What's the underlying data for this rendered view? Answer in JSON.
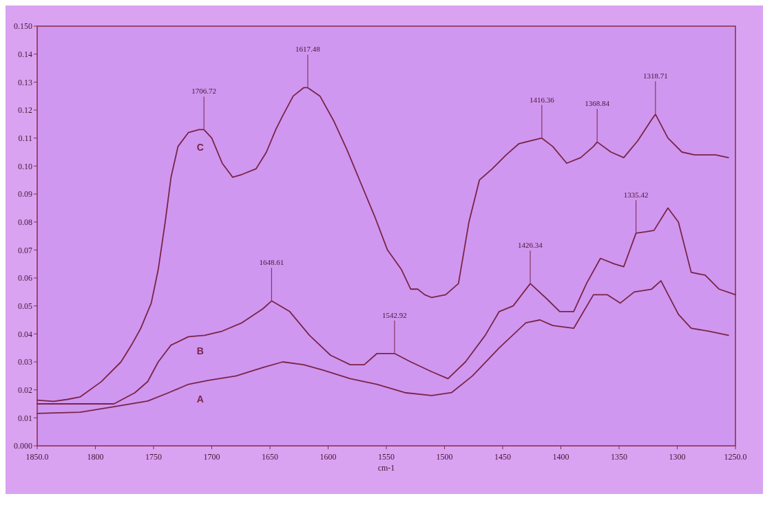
{
  "chart_data": {
    "type": "line",
    "xlabel": "cm-1",
    "xlim": [
      1850,
      1250
    ],
    "xticks": [
      {
        "value": 1850,
        "label": "1850.0"
      },
      1800,
      1750,
      1700,
      1650,
      1600,
      1550,
      1500,
      1450,
      1400,
      1350,
      1300,
      {
        "value": 1250,
        "label": "1250.0"
      }
    ],
    "ylim": [
      0,
      0.15
    ],
    "yticks": [
      {
        "value": 0,
        "label": "0.000"
      },
      0.01,
      0.02,
      0.03,
      0.04,
      0.05,
      0.06,
      0.07,
      0.08,
      0.09,
      {
        "value": 0.1,
        "label": "0.10"
      },
      0.11,
      0.12,
      0.13,
      0.14,
      {
        "value": 0.15,
        "label": "0.150"
      }
    ],
    "grid": false,
    "marker": "none",
    "line_style": "solid",
    "series": [
      {
        "name": "A",
        "color": "#7a2348",
        "x": [
          1850,
          1813,
          1784,
          1755,
          1737,
          1720,
          1703,
          1679,
          1656,
          1639,
          1621,
          1604,
          1581,
          1558,
          1534,
          1511,
          1494,
          1476,
          1453,
          1430,
          1418,
          1407,
          1389,
          1372,
          1360,
          1349,
          1337,
          1322,
          1314,
          1299,
          1288,
          1273,
          1256
        ],
        "values": [
          0.0116,
          0.012,
          0.014,
          0.016,
          0.019,
          0.022,
          0.0234,
          0.025,
          0.028,
          0.03,
          0.029,
          0.027,
          0.024,
          0.022,
          0.019,
          0.018,
          0.019,
          0.025,
          0.035,
          0.044,
          0.045,
          0.043,
          0.042,
          0.054,
          0.054,
          0.051,
          0.055,
          0.056,
          0.059,
          0.047,
          0.042,
          0.041,
          0.0395
        ]
      },
      {
        "name": "B",
        "color": "#7a2348",
        "x": [
          1850,
          1813,
          1784,
          1766,
          1755,
          1746,
          1735,
          1720,
          1706,
          1691,
          1674,
          1656,
          1648.6,
          1633,
          1616,
          1598,
          1581,
          1569,
          1558,
          1543,
          1529,
          1511,
          1497,
          1482,
          1465,
          1453,
          1441,
          1426.3,
          1412,
          1401,
          1389,
          1378,
          1366,
          1354,
          1346,
          1335.42,
          1327,
          1320,
          1308,
          1299,
          1288,
          1276,
          1264,
          1250
        ],
        "values": [
          0.015,
          0.015,
          0.015,
          0.019,
          0.023,
          0.03,
          0.036,
          0.039,
          0.0395,
          0.041,
          0.044,
          0.049,
          0.0518,
          0.048,
          0.0395,
          0.0324,
          0.029,
          0.029,
          0.033,
          0.033,
          0.03,
          0.0265,
          0.024,
          0.03,
          0.0395,
          0.048,
          0.05,
          0.058,
          0.0525,
          0.048,
          0.048,
          0.058,
          0.067,
          0.065,
          0.064,
          0.076,
          0.0765,
          0.077,
          0.085,
          0.08,
          0.062,
          0.061,
          0.056,
          0.054
        ]
      },
      {
        "name": "C",
        "color": "#7a2348",
        "x": [
          1850,
          1836,
          1824,
          1813,
          1795,
          1778,
          1769,
          1761,
          1752,
          1746,
          1740,
          1735,
          1729,
          1720,
          1711,
          1706.7,
          1700,
          1691,
          1682,
          1674,
          1662,
          1653,
          1645,
          1639,
          1630,
          1621,
          1617.5,
          1607,
          1595,
          1584,
          1572,
          1560,
          1549,
          1537,
          1529,
          1523,
          1517,
          1511,
          1499,
          1488,
          1479,
          1470,
          1459,
          1447,
          1436,
          1416.4,
          1407,
          1395,
          1383,
          1372,
          1368.8,
          1357,
          1346,
          1334,
          1322,
          1318.7,
          1308,
          1296,
          1285,
          1267,
          1256
        ],
        "values": [
          0.0163,
          0.0159,
          0.0166,
          0.0175,
          0.0229,
          0.03,
          0.036,
          0.042,
          0.051,
          0.063,
          0.08,
          0.096,
          0.107,
          0.112,
          0.113,
          0.113,
          0.11,
          0.101,
          0.096,
          0.097,
          0.099,
          0.105,
          0.113,
          0.118,
          0.125,
          0.128,
          0.128,
          0.125,
          0.116,
          0.106,
          0.094,
          0.082,
          0.07,
          0.063,
          0.056,
          0.056,
          0.054,
          0.053,
          0.054,
          0.058,
          0.08,
          0.095,
          0.099,
          0.104,
          0.108,
          0.11,
          0.107,
          0.101,
          0.103,
          0.107,
          0.1086,
          0.105,
          0.103,
          0.109,
          0.1166,
          0.1185,
          0.11,
          0.105,
          0.104,
          0.104,
          0.103
        ]
      }
    ],
    "annotations": [
      {
        "text": "1706.72",
        "x": 1706.72,
        "y": 0.113
      },
      {
        "text": "1617.48",
        "x": 1617.48,
        "y": 0.128
      },
      {
        "text": "1648.61",
        "x": 1648.61,
        "y": 0.0518
      },
      {
        "text": "1542.92",
        "x": 1542.92,
        "y": 0.033
      },
      {
        "text": "1416.36",
        "x": 1416.36,
        "y": 0.11
      },
      {
        "text": "1368.84",
        "x": 1368.84,
        "y": 0.1086
      },
      {
        "text": "1318.71",
        "x": 1318.71,
        "y": 0.1185
      },
      {
        "text": "1426.34",
        "x": 1426.34,
        "y": 0.058
      },
      {
        "text": "1335.42",
        "x": 1335.42,
        "y": 0.076
      }
    ]
  }
}
